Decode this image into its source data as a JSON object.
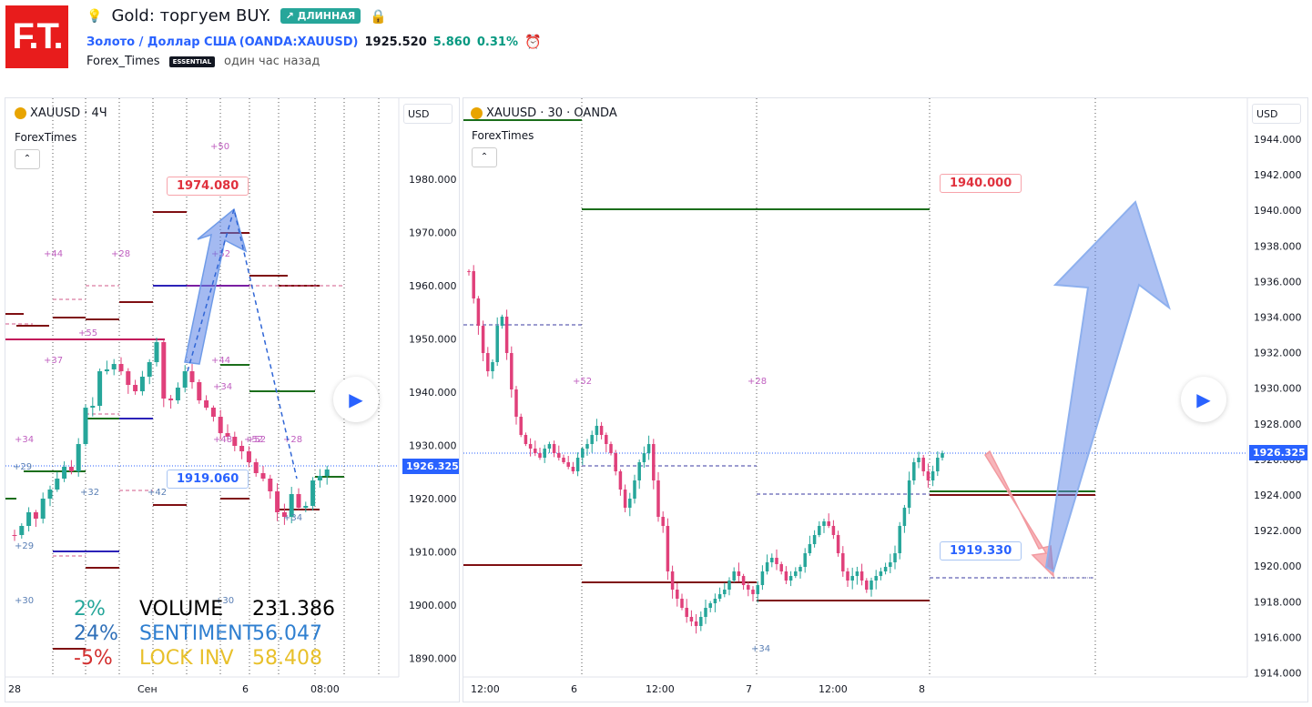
{
  "header": {
    "logo_text": "F.T.",
    "bulb_icon": "💡",
    "title": "Gold: торгуем BUY.",
    "direction_badge": "↗ ДЛИННАЯ",
    "symbol_name": "Золото / Доллар США",
    "symbol_code": "(OANDA:XAUUSD)",
    "price": "1925.520",
    "change": "5.860",
    "change_pct": "0.31%",
    "author": "Forex_Times",
    "author_badge": "ESSENTIAL",
    "published": "один час назад"
  },
  "left_chart": {
    "symbol": "XAUUSD · 4Ч",
    "indicator": "ForexTimes",
    "collapse_label": "⌃",
    "currency": "USD",
    "y_ticks": [
      "1980.000",
      "1970.000",
      "1960.000",
      "1950.000",
      "1940.000",
      "1930.000",
      "1920.000",
      "1910.000",
      "1900.000",
      "1890.000"
    ],
    "x_ticks": [
      "28",
      "Сен",
      "6",
      "08:00"
    ],
    "current_price": "1926.325",
    "high_label": "1974.080",
    "low_label": "1919.060",
    "marks": [
      "+50",
      "+44",
      "+28",
      "+52",
      "+55",
      "+37",
      "+44",
      "+34",
      "+52",
      "+48",
      "+52",
      "+28",
      "+34",
      "+29",
      "+32",
      "+42",
      "+34",
      "+29",
      "+30",
      "+30"
    ],
    "stats": {
      "pct": [
        "2%",
        "24%",
        "-5%"
      ],
      "labels": [
        "VOLUME",
        "SENTIMENT",
        "LOCK INV"
      ],
      "values": [
        "231.386",
        "56.047",
        "58.408"
      ]
    }
  },
  "right_chart": {
    "symbol": "XAUUSD · 30 · OANDA",
    "indicator": "ForexTimes",
    "collapse_label": "⌃",
    "currency": "USD",
    "y_ticks": [
      "1944.000",
      "1942.000",
      "1940.000",
      "1938.000",
      "1936.000",
      "1934.000",
      "1932.000",
      "1930.000",
      "1928.000",
      "1926.000",
      "1924.000",
      "1922.000",
      "1920.000",
      "1918.000",
      "1916.000",
      "1914.000"
    ],
    "x_ticks": [
      "12:00",
      "6",
      "12:00",
      "7",
      "12:00",
      "8"
    ],
    "current_price": "1926.325",
    "target_label": "1940.000",
    "support_label": "1919.330",
    "marks": [
      "+52",
      "+28",
      "+34"
    ]
  },
  "colors": {
    "up": "#26a69a",
    "down": "#e0407a",
    "accent": "#2962ff",
    "level_red": "#7f0f12",
    "level_green": "#1b6e1b"
  }
}
